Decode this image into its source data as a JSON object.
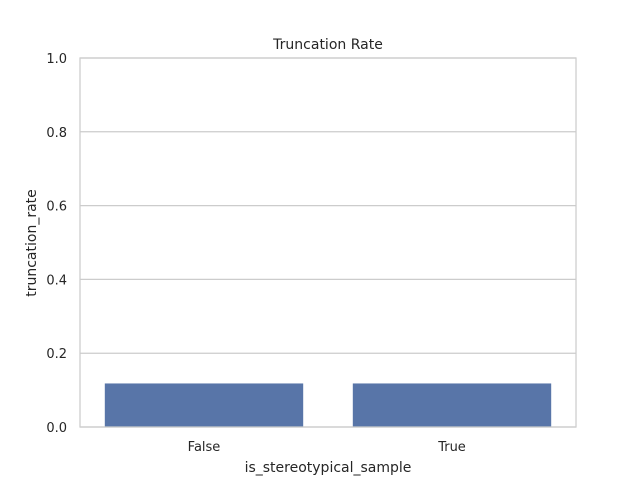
{
  "chart_data": {
    "type": "bar",
    "title": "Truncation Rate",
    "xlabel": "is_stereotypical_sample",
    "ylabel": "truncation_rate",
    "categories": [
      "False",
      "True"
    ],
    "values": [
      0.118,
      0.118
    ],
    "ylim": [
      0,
      1.0
    ],
    "yticks": [
      "0.0",
      "0.2",
      "0.4",
      "0.6",
      "0.8",
      "1.0"
    ],
    "ytick_values": [
      0,
      0.2,
      0.4,
      0.6,
      0.8,
      1.0
    ],
    "grid": true,
    "legend": "none",
    "colors": {
      "bar": "#5875a8",
      "grid": "#cccccc",
      "spine": "#cccccc",
      "text": "#262626"
    }
  }
}
